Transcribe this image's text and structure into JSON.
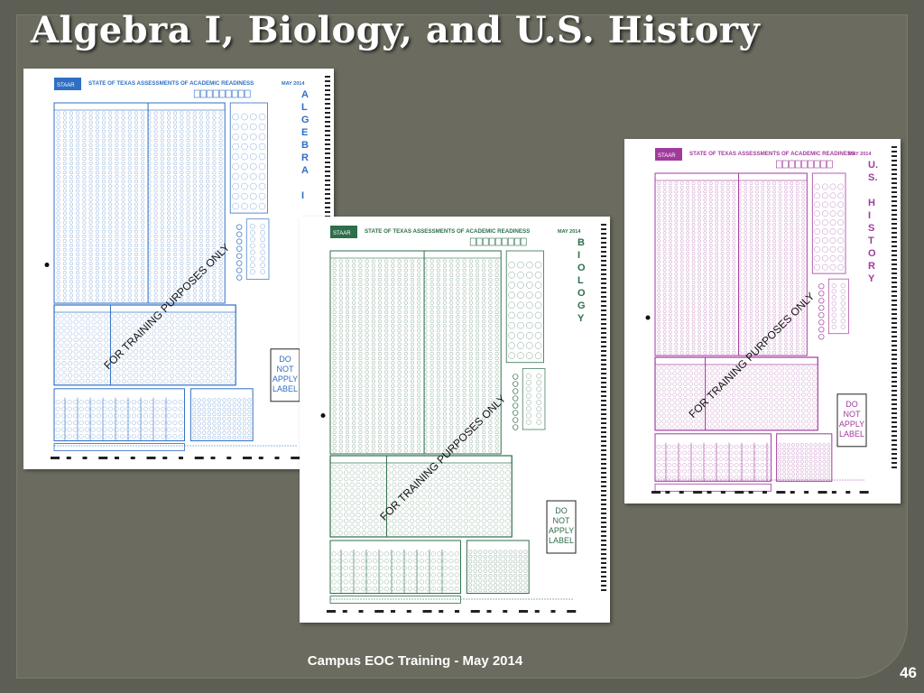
{
  "slide": {
    "title": "Algebra I, Biology, and U.S. History",
    "footer": "Campus EOC Training - May 2014",
    "page_number": "46"
  },
  "forms": [
    {
      "id": "algebra",
      "header": "STATE OF TEXAS ASSESSMENTS OF ACADEMIC READINESS",
      "date": "MAY 2014",
      "subject_letters": [
        "A",
        "L",
        "G",
        "E",
        "B",
        "R",
        "A",
        "",
        "I"
      ],
      "watermark": "FOR TRAINING PURPOSES ONLY",
      "label_box": [
        "DO",
        "NOT",
        "APPLY",
        "LABEL"
      ],
      "color": "#2f6fc4"
    },
    {
      "id": "biology",
      "header": "STATE OF TEXAS ASSESSMENTS OF ACADEMIC READINESS",
      "date": "MAY 2014",
      "subject_letters": [
        "B",
        "I",
        "O",
        "L",
        "O",
        "G",
        "Y"
      ],
      "watermark": "FOR TRAINING PURPOSES ONLY",
      "label_box": [
        "DO",
        "NOT",
        "APPLY",
        "LABEL"
      ],
      "color": "#2e6e4a"
    },
    {
      "id": "ushistory",
      "header": "STATE OF TEXAS ASSESSMENTS OF ACADEMIC READINESS",
      "date": "MAY 2014",
      "subject_letters": [
        "U.",
        "S.",
        "",
        "H",
        "I",
        "S",
        "T",
        "O",
        "R",
        "Y"
      ],
      "watermark": "FOR TRAINING PURPOSES ONLY",
      "label_box": [
        "DO",
        "NOT",
        "APPLY",
        "LABEL"
      ],
      "color": "#a23a9e"
    }
  ]
}
